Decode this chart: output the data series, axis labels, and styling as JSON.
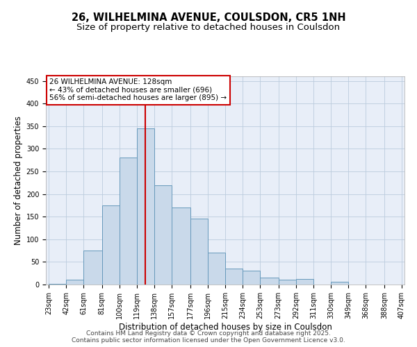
{
  "title_line1": "26, WILHELMINA AVENUE, COULSDON, CR5 1NH",
  "title_line2": "Size of property relative to detached houses in Coulsdon",
  "xlabel": "Distribution of detached houses by size in Coulsdon",
  "ylabel": "Number of detached properties",
  "annotation_line1": "26 WILHELMINA AVENUE: 128sqm",
  "annotation_line2": "← 43% of detached houses are smaller (696)",
  "annotation_line3": "56% of semi-detached houses are larger (895) →",
  "footer_line1": "Contains HM Land Registry data © Crown copyright and database right 2025.",
  "footer_line2": "Contains public sector information licensed under the Open Government Licence v3.0.",
  "bar_color": "#c9d9ea",
  "bar_edge_color": "#6699bb",
  "background_color": "#e8eef8",
  "grid_color": "#bbccdd",
  "vline_x": 128,
  "vline_color": "#cc0000",
  "annotation_box_color": "#cc0000",
  "bin_edges": [
    23,
    42,
    61,
    81,
    100,
    119,
    138,
    157,
    177,
    196,
    215,
    234,
    253,
    273,
    292,
    311,
    330,
    349,
    368,
    388,
    407
  ],
  "bar_heights": [
    2,
    10,
    75,
    175,
    280,
    345,
    220,
    170,
    145,
    70,
    35,
    30,
    15,
    10,
    12,
    0,
    6,
    0,
    0,
    0
  ],
  "ylim": [
    0,
    460
  ],
  "yticks": [
    0,
    50,
    100,
    150,
    200,
    250,
    300,
    350,
    400,
    450
  ],
  "title_fontsize": 10.5,
  "subtitle_fontsize": 9.5,
  "axis_label_fontsize": 8.5,
  "tick_label_fontsize": 7,
  "annotation_fontsize": 7.5,
  "footer_fontsize": 6.5
}
